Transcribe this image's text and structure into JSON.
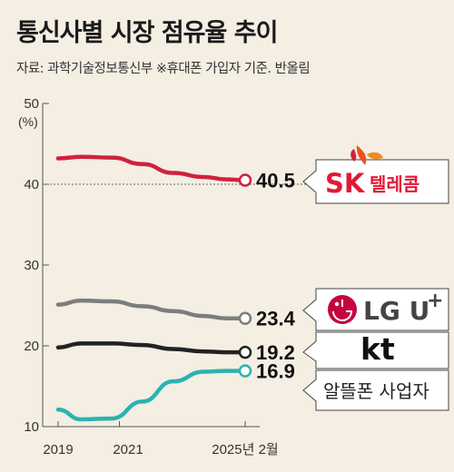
{
  "title": "통신사별 시장 점유율 추이",
  "subtitle": "자료: 과학기술정보통신부 ※휴대폰 가입자 기준. 반올림",
  "colors": {
    "background": "#f4eee3",
    "skt": "#d0213e",
    "lgu": "#7d7d7d",
    "kt": "#222222",
    "mvno": "#2bb3b0"
  },
  "chart_data": {
    "type": "line",
    "ylim": [
      10,
      50
    ],
    "yticks": [
      "10",
      "20",
      "30",
      "40",
      "50"
    ],
    "yunit": "(%)",
    "xticks": [
      "2019",
      "2021",
      "2025년 2월"
    ],
    "grid": false,
    "series": [
      {
        "name": "SK 텔레콤",
        "color": "#d0213e",
        "x": [
          2019.0,
          2019.75,
          2020.75,
          2021.75,
          2022.75,
          2023.75,
          2024.5,
          2025.1
        ],
        "y": [
          43.2,
          43.4,
          43.3,
          42.5,
          41.4,
          40.9,
          40.6,
          40.5
        ],
        "end_label": "40.5",
        "logo": {
          "mark": "SK",
          "text": "텔레콤",
          "icon": "sk-butterfly-icon"
        }
      },
      {
        "name": "LG U+",
        "color": "#7d7d7d",
        "x": [
          2019.0,
          2019.75,
          2020.75,
          2021.75,
          2022.75,
          2023.75,
          2024.5,
          2025.1
        ],
        "y": [
          25.1,
          25.6,
          25.5,
          24.9,
          24.3,
          23.7,
          23.4,
          23.4
        ],
        "end_label": "23.4",
        "logo": {
          "mark": "LG U",
          "sup": "+",
          "icon": "lg-face-icon"
        }
      },
      {
        "name": "kt",
        "color": "#222222",
        "x": [
          2019.0,
          2019.75,
          2020.75,
          2021.75,
          2022.75,
          2023.75,
          2024.5,
          2025.1
        ],
        "y": [
          19.8,
          20.3,
          20.3,
          20.1,
          19.6,
          19.3,
          19.2,
          19.2
        ],
        "end_label": "19.2",
        "logo": {
          "mark": "kt"
        }
      },
      {
        "name": "알뜰폰 사업자",
        "color": "#2bb3b0",
        "x": [
          2019.0,
          2019.75,
          2020.75,
          2021.75,
          2022.75,
          2023.75,
          2024.5,
          2025.1
        ],
        "y": [
          12.1,
          10.9,
          11.0,
          13.1,
          15.6,
          16.8,
          16.9,
          16.9
        ],
        "end_label": "16.9",
        "logo": {
          "text": "알뜰폰 사업자"
        }
      }
    ]
  }
}
